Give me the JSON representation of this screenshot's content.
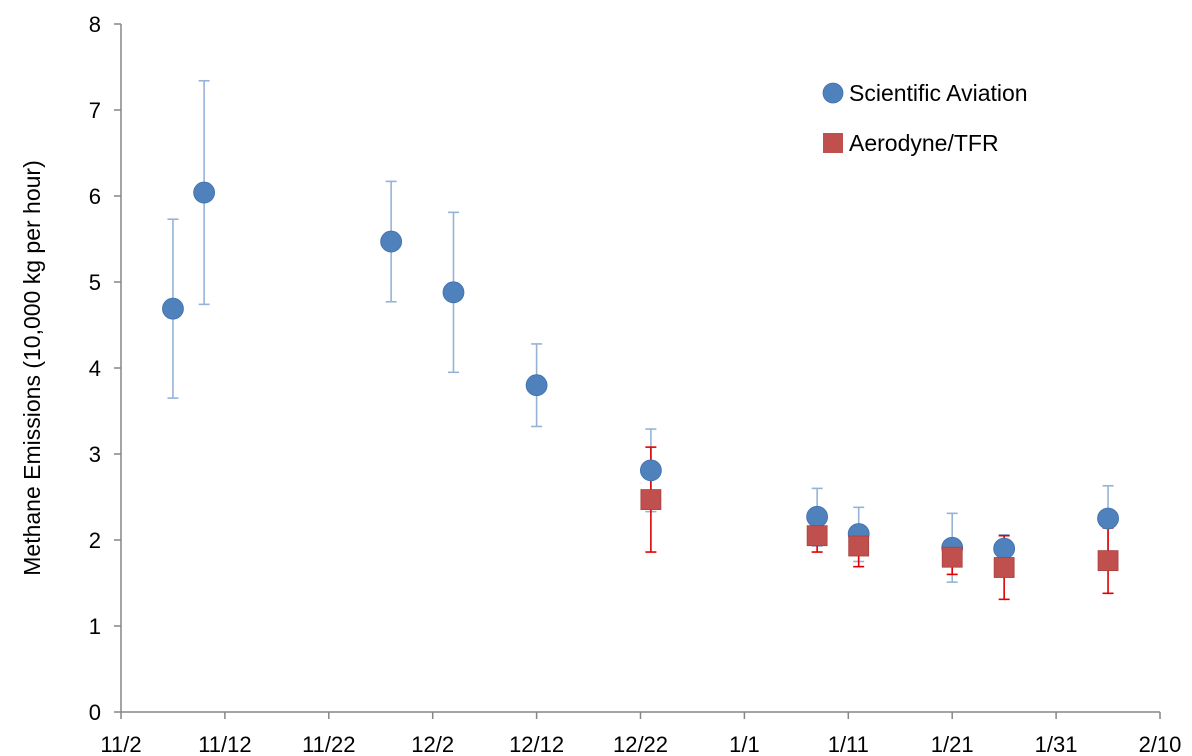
{
  "chart_data": {
    "type": "scatter",
    "title": "",
    "xlabel": "",
    "ylabel": "Methane Emissions (10,000 kg per hour)",
    "x_axis": {
      "type": "date",
      "min": "2015-11-02",
      "max": "2016-02-10",
      "tick_labels": [
        "11/2",
        "11/12",
        "11/22",
        "12/2",
        "12/12",
        "12/22",
        "1/1",
        "1/11",
        "1/21",
        "1/31",
        "2/10"
      ],
      "tick_dates": [
        "2015-11-02",
        "2015-11-12",
        "2015-11-22",
        "2015-12-02",
        "2015-12-12",
        "2015-12-22",
        "2016-01-01",
        "2016-01-11",
        "2016-01-21",
        "2016-01-31",
        "2016-02-10"
      ]
    },
    "ylim": [
      0,
      8
    ],
    "yticks": [
      0,
      1,
      2,
      3,
      4,
      5,
      6,
      7,
      8
    ],
    "grid": false,
    "legend_position": "top-right",
    "series": [
      {
        "name": "Scientific Aviation",
        "marker": "circle",
        "color": "#4f81bd",
        "error_color": "#95b3d7",
        "points": [
          {
            "x": "2015-11-07",
            "y": 4.69,
            "err_low": 3.65,
            "err_high": 5.73
          },
          {
            "x": "2015-11-10",
            "y": 6.04,
            "err_low": 4.74,
            "err_high": 7.34
          },
          {
            "x": "2015-11-28",
            "y": 5.47,
            "err_low": 4.77,
            "err_high": 6.17
          },
          {
            "x": "2015-12-04",
            "y": 4.88,
            "err_low": 3.95,
            "err_high": 5.81
          },
          {
            "x": "2015-12-12",
            "y": 3.8,
            "err_low": 3.32,
            "err_high": 4.28
          },
          {
            "x": "2015-12-23",
            "y": 2.81,
            "err_low": 2.33,
            "err_high": 3.29
          },
          {
            "x": "2016-01-08",
            "y": 2.27,
            "err_low": 1.93,
            "err_high": 2.6
          },
          {
            "x": "2016-01-12",
            "y": 2.07,
            "err_low": 1.75,
            "err_high": 2.38
          },
          {
            "x": "2016-01-21",
            "y": 1.91,
            "err_low": 1.51,
            "err_high": 2.31
          },
          {
            "x": "2016-01-26",
            "y": 1.9,
            "err_low": 1.74,
            "err_high": 2.06
          },
          {
            "x": "2016-02-05",
            "y": 2.25,
            "err_low": 1.87,
            "err_high": 2.63
          }
        ]
      },
      {
        "name": "Aerodyne/TFR",
        "marker": "square",
        "color": "#c0504d",
        "error_color": "#e00000",
        "points": [
          {
            "x": "2015-12-23",
            "y": 2.47,
            "err_low": 1.86,
            "err_high": 3.08
          },
          {
            "x": "2016-01-08",
            "y": 2.05,
            "err_low": 1.86,
            "err_high": 2.09
          },
          {
            "x": "2016-01-12",
            "y": 1.93,
            "err_low": 1.69,
            "err_high": 2.17
          },
          {
            "x": "2016-01-21",
            "y": 1.8,
            "err_low": 1.6,
            "err_high": 1.98
          },
          {
            "x": "2016-01-26",
            "y": 1.68,
            "err_low": 1.31,
            "err_high": 2.05
          },
          {
            "x": "2016-02-05",
            "y": 1.76,
            "err_low": 1.38,
            "err_high": 2.14
          }
        ]
      }
    ]
  }
}
